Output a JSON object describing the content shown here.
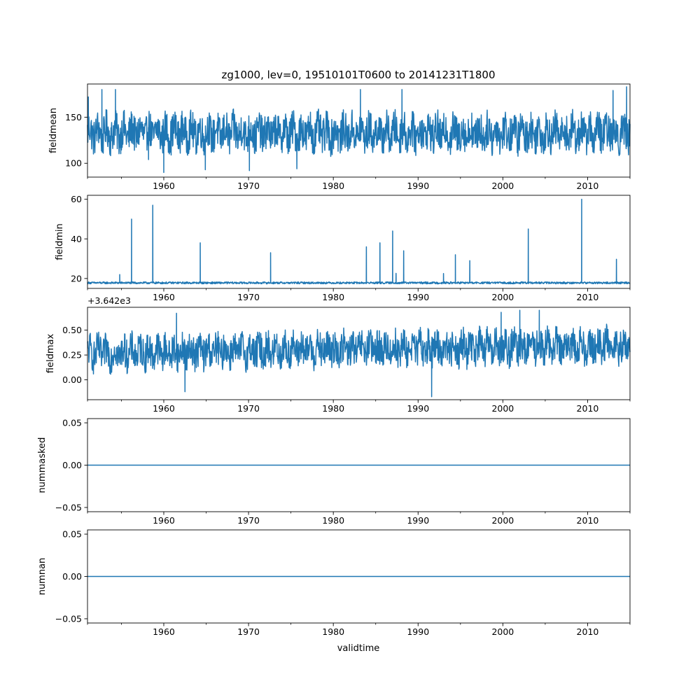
{
  "title": "zg1000, lev=0, 19510101T0600 to 20141231T1800",
  "xlabel": "validtime",
  "colors": {
    "line": "#1f77b4",
    "axes": "#000000",
    "background": "#ffffff"
  },
  "chart_data": [
    {
      "type": "line",
      "name": "fieldmean",
      "ylabel": "fieldmean",
      "offset_label": "",
      "xlim": [
        1951.0,
        2015.0
      ],
      "ylim": [
        85,
        186
      ],
      "x_ticks": [
        1960,
        1970,
        1980,
        1990,
        2000,
        2010
      ],
      "x_tick_labels": [
        "1960",
        "1970",
        "1980",
        "1990",
        "2000",
        "2010"
      ],
      "x_minor_ticks": [
        1955,
        1965,
        1975,
        1985,
        1995,
        2005
      ],
      "y_ticks": [
        100,
        150
      ],
      "y_tick_labels": [
        "100",
        "150"
      ],
      "series": {
        "kind": "noise",
        "base": 133,
        "amp": 20,
        "seasonal": 6,
        "trend": 0.0,
        "range": [
          100,
          172
        ],
        "spikes": [
          [
            1951.1,
            172
          ],
          [
            1952.7,
            180
          ],
          [
            1954.3,
            180
          ],
          [
            1958.2,
            104
          ],
          [
            1960.0,
            90
          ],
          [
            1964.9,
            93
          ],
          [
            1970.1,
            92
          ],
          [
            1975.7,
            94
          ],
          [
            1983.2,
            180
          ],
          [
            1988.1,
            180
          ],
          [
            2013.0,
            179
          ],
          [
            2014.6,
            183
          ]
        ]
      }
    },
    {
      "type": "line",
      "name": "fieldmin",
      "ylabel": "fieldmin",
      "offset_label": "",
      "xlim": [
        1951.0,
        2015.0
      ],
      "ylim": [
        15,
        62
      ],
      "x_ticks": [
        1960,
        1970,
        1980,
        1990,
        2000,
        2010
      ],
      "x_tick_labels": [
        "1960",
        "1970",
        "1980",
        "1990",
        "2000",
        "2010"
      ],
      "x_minor_ticks": [
        1955,
        1965,
        1975,
        1985,
        1995,
        2005
      ],
      "y_ticks": [
        20,
        40,
        60
      ],
      "y_tick_labels": [
        "20",
        "40",
        "60"
      ],
      "series": {
        "kind": "baseline-spikes",
        "base": 17.8,
        "amp": 0.5,
        "seasonal": 0,
        "trend": 0.0,
        "range": [
          17.2,
          18.8
        ],
        "spikes": [
          [
            1954.8,
            22
          ],
          [
            1956.2,
            50
          ],
          [
            1958.7,
            57
          ],
          [
            1964.3,
            38
          ],
          [
            1972.6,
            33
          ],
          [
            1983.9,
            36
          ],
          [
            1985.5,
            38
          ],
          [
            1987.0,
            44
          ],
          [
            1987.4,
            22.6
          ],
          [
            1988.3,
            34
          ],
          [
            1993.0,
            22.5
          ],
          [
            1994.4,
            32
          ],
          [
            1996.1,
            29
          ],
          [
            2003.0,
            45
          ],
          [
            2009.3,
            60
          ],
          [
            2013.4,
            29.7
          ]
        ]
      }
    },
    {
      "type": "line",
      "name": "fieldmax",
      "ylabel": "fieldmax",
      "offset_label": "+3.642e3",
      "xlim": [
        1951.0,
        2015.0
      ],
      "ylim": [
        -0.2,
        0.73
      ],
      "x_ticks": [
        1960,
        1970,
        1980,
        1990,
        2000,
        2010
      ],
      "x_tick_labels": [
        "1960",
        "1970",
        "1980",
        "1990",
        "2000",
        "2010"
      ],
      "x_minor_ticks": [
        1955,
        1965,
        1975,
        1985,
        1995,
        2005
      ],
      "y_ticks": [
        0.0,
        0.25,
        0.5
      ],
      "y_tick_labels": [
        "0.00",
        "0.25",
        "0.50"
      ],
      "series": {
        "kind": "noise",
        "base": 0.27,
        "amp": 0.17,
        "seasonal": 0.05,
        "trend": 0.0012,
        "range": [
          -0.05,
          0.62
        ],
        "spikes": [
          [
            1961.5,
            0.67
          ],
          [
            1962.5,
            -0.12
          ],
          [
            1991.6,
            -0.17
          ],
          [
            2002.0,
            0.7
          ],
          [
            2004.3,
            0.7
          ],
          [
            1999.8,
            0.68
          ]
        ]
      }
    },
    {
      "type": "line",
      "name": "nummasked",
      "ylabel": "nummasked",
      "offset_label": "",
      "xlim": [
        1951.0,
        2015.0
      ],
      "ylim": [
        -0.055,
        0.055
      ],
      "x_ticks": [
        1960,
        1970,
        1980,
        1990,
        2000,
        2010
      ],
      "x_tick_labels": [
        "1960",
        "1970",
        "1980",
        "1990",
        "2000",
        "2010"
      ],
      "x_minor_ticks": [
        1955,
        1965,
        1975,
        1985,
        1995,
        2005
      ],
      "y_ticks": [
        -0.05,
        0.0,
        0.05
      ],
      "y_tick_labels": [
        "−0.05",
        "0.00",
        "0.05"
      ],
      "series": {
        "kind": "constant",
        "value": 0
      }
    },
    {
      "type": "line",
      "name": "numnan",
      "ylabel": "numnan",
      "offset_label": "",
      "xlim": [
        1951.0,
        2015.0
      ],
      "ylim": [
        -0.055,
        0.055
      ],
      "x_ticks": [
        1960,
        1970,
        1980,
        1990,
        2000,
        2010
      ],
      "x_tick_labels": [
        "1960",
        "1970",
        "1980",
        "1990",
        "2000",
        "2010"
      ],
      "x_minor_ticks": [
        1955,
        1965,
        1975,
        1985,
        1995,
        2005
      ],
      "y_ticks": [
        -0.05,
        0.0,
        0.05
      ],
      "y_tick_labels": [
        "−0.05",
        "0.00",
        "0.05"
      ],
      "series": {
        "kind": "constant",
        "value": 0
      }
    }
  ]
}
